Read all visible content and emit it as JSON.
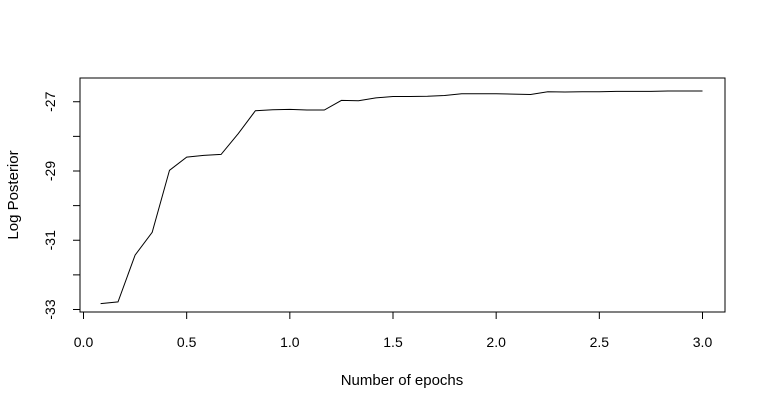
{
  "chart_data": {
    "type": "line",
    "xlabel": "Number of epochs",
    "ylabel": "Log Posterior",
    "xlim": [
      0.0,
      3.0
    ],
    "ylim": [
      -33.0,
      -26.3
    ],
    "x_ticks": [
      0.0,
      0.5,
      1.0,
      1.5,
      2.0,
      2.5,
      3.0
    ],
    "x_tick_labels": [
      "0.0",
      "0.5",
      "1.0",
      "1.5",
      "2.0",
      "2.5",
      "3.0"
    ],
    "y_ticks": [
      -33,
      -32,
      -31,
      -30,
      -29,
      -28,
      -27
    ],
    "y_tick_labels": [
      "-33",
      "",
      "-31",
      "",
      "-29",
      "",
      "-27"
    ],
    "series": [
      {
        "color": "#000000",
        "x": [
          0.083,
          0.167,
          0.25,
          0.333,
          0.417,
          0.5,
          0.583,
          0.667,
          0.75,
          0.833,
          0.917,
          1.0,
          1.083,
          1.167,
          1.25,
          1.333,
          1.417,
          1.5,
          1.583,
          1.667,
          1.75,
          1.833,
          1.917,
          2.0,
          2.083,
          2.167,
          2.25,
          2.333,
          2.417,
          2.5,
          2.583,
          2.667,
          2.75,
          2.833,
          2.917,
          3.0
        ],
        "y": [
          -32.83,
          -32.78,
          -31.43,
          -30.77,
          -28.98,
          -28.6,
          -28.55,
          -28.52,
          -27.92,
          -27.26,
          -27.23,
          -27.22,
          -27.24,
          -27.24,
          -26.96,
          -26.97,
          -26.89,
          -26.85,
          -26.85,
          -26.84,
          -26.82,
          -26.77,
          -26.77,
          -26.77,
          -26.78,
          -26.79,
          -26.71,
          -26.72,
          -26.71,
          -26.71,
          -26.7,
          -26.7,
          -26.7,
          -26.69,
          -26.69,
          -26.69
        ]
      }
    ]
  }
}
